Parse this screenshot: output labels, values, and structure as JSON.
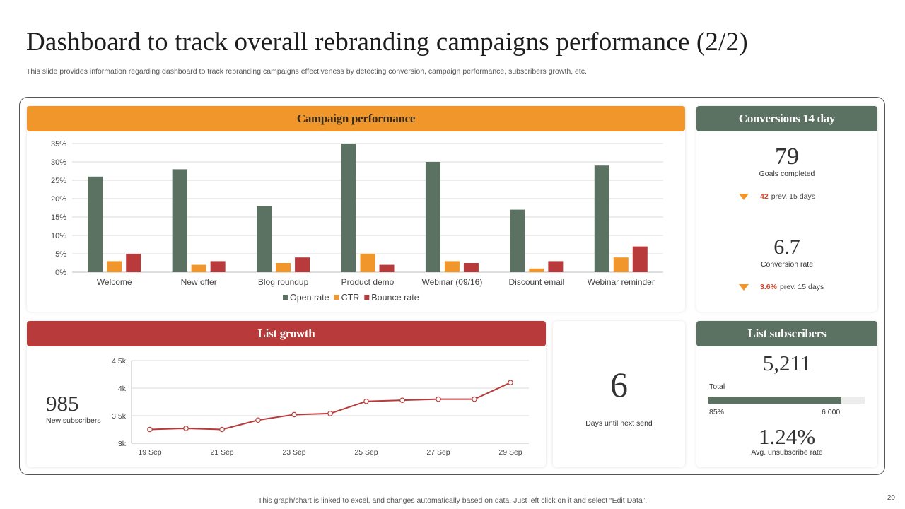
{
  "slide": {
    "title": "Dashboard to track overall rebranding campaigns performance (2/2)",
    "subtitle": "This slide provides information regarding dashboard to track rebranding campaigns effectiveness by detecting conversion, campaign performance, subscribers growth, etc.",
    "footer": "This graph/chart is linked to excel,  and changes automatically based on data. Just left click on it and select “Edit Data”.",
    "page_number": "20"
  },
  "colors": {
    "open_rate": "#5b7262",
    "ctr": "#f0962a",
    "bounce_rate": "#b93a3a",
    "line": "#b93a3a"
  },
  "campaign": {
    "header": "Campaign performance"
  },
  "conversions": {
    "header": "Conversions 14 day",
    "goals_value": "79",
    "goals_label": "Goals completed",
    "goals_prev_value": "42",
    "goals_prev_label": "prev. 15 days",
    "rate_value": "6.7",
    "rate_label": "Conversion rate",
    "rate_prev_value": "3.6%",
    "rate_prev_label": "prev. 15 days"
  },
  "list_growth": {
    "header": "List growth",
    "value": "985",
    "label": "New subscribers"
  },
  "next_send": {
    "value": "6",
    "label": "Days until next send"
  },
  "list_subscribers": {
    "header": "List subscribers",
    "value": "5,211",
    "total_label": "Total",
    "progress_fraction": 0.85,
    "progress_label": "85%",
    "target_label": "6,000",
    "unsub_value": "1.24%",
    "unsub_label": "Avg. unsubscribe rate"
  },
  "chart_data": [
    {
      "type": "bar",
      "title": "Campaign performance",
      "categories": [
        "Welcome",
        "New offer",
        "Blog roundup",
        "Product demo",
        "Webinar (09/16)",
        "Discount email",
        "Webinar reminder"
      ],
      "series": [
        {
          "name": "Open rate",
          "values": [
            26,
            28,
            18,
            35,
            30,
            17,
            29
          ]
        },
        {
          "name": "CTR",
          "values": [
            3,
            2,
            2.5,
            5,
            3,
            1,
            4
          ]
        },
        {
          "name": "Bounce rate",
          "values": [
            5,
            3,
            4,
            2,
            2.5,
            3,
            7
          ]
        }
      ],
      "ylim": [
        0,
        35
      ],
      "yticks": [
        "0%",
        "5%",
        "10%",
        "15%",
        "20%",
        "25%",
        "30%",
        "35%"
      ],
      "ytick_values": [
        0,
        5,
        10,
        15,
        20,
        25,
        30,
        35
      ],
      "legend": "bottom",
      "grid": true
    },
    {
      "type": "line",
      "title": "List growth",
      "x": [
        "19 Sep",
        "20 Sep",
        "21 Sep",
        "22 Sep",
        "23 Sep",
        "24 Sep",
        "25 Sep",
        "26 Sep",
        "27 Sep",
        "28 Sep",
        "29 Sep"
      ],
      "values": [
        3250,
        3270,
        3250,
        3420,
        3520,
        3540,
        3760,
        3780,
        3800,
        3800,
        4100
      ],
      "xticks": [
        "19 Sep",
        "21 Sep",
        "23 Sep",
        "25 Sep",
        "27 Sep",
        "29 Sep"
      ],
      "ylim": [
        3000,
        4500
      ],
      "yticks": [
        "3k",
        "3.5k",
        "4k",
        "4.5k"
      ],
      "ytick_values": [
        3000,
        3500,
        4000,
        4500
      ],
      "grid": true
    }
  ]
}
